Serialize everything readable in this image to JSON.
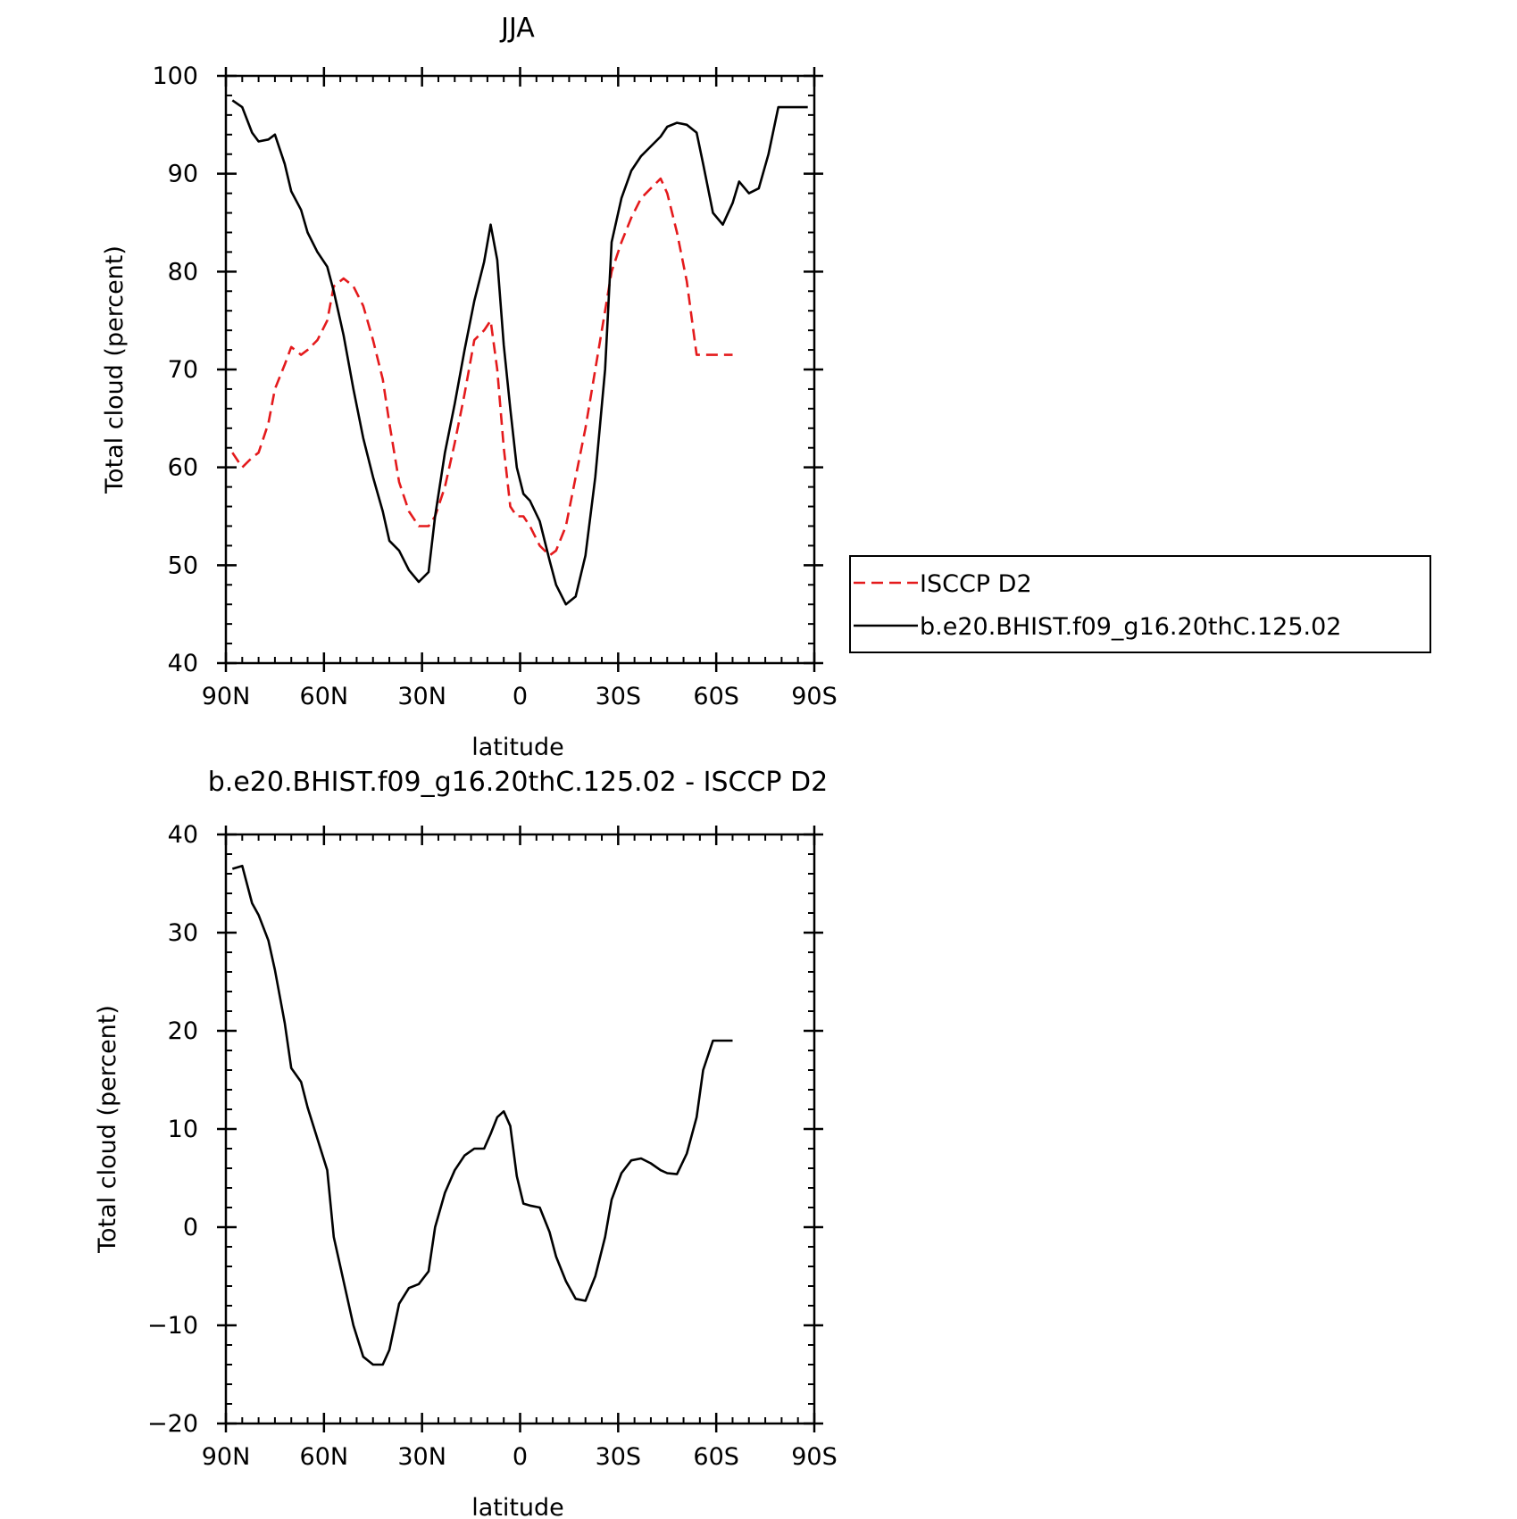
{
  "chart_data": [
    {
      "type": "line",
      "title": "JJA",
      "xlabel": "latitude",
      "ylabel": "Total cloud (percent)",
      "xlim": [
        90,
        -90
      ],
      "ylim": [
        40,
        100
      ],
      "xticks": [
        90,
        60,
        30,
        0,
        -30,
        -60,
        -90
      ],
      "xtick_labels": [
        "90N",
        "60N",
        "30N",
        "0",
        "30S",
        "60S",
        "90S"
      ],
      "yticks": [
        40,
        50,
        60,
        70,
        80,
        90,
        100
      ],
      "ytick_labels": [
        "40",
        "50",
        "60",
        "70",
        "80",
        "90",
        "100"
      ],
      "legend_position": "right",
      "series": [
        {
          "name": "ISCCP D2",
          "color": "#e41a1c",
          "dash": true,
          "x": [
            88,
            85,
            82,
            80,
            77,
            75,
            72,
            70,
            67,
            65,
            62,
            59,
            57,
            54,
            51,
            48,
            45,
            42,
            40,
            37,
            34,
            31,
            28,
            26,
            23,
            20,
            17,
            14,
            11,
            9,
            7,
            5,
            3,
            1,
            -1,
            -3,
            -6,
            -9,
            -11,
            -14,
            -17,
            -20,
            -23,
            -26,
            -28,
            -31,
            -34,
            -37,
            -40,
            -43,
            -45,
            -48,
            -51,
            -54,
            -56,
            -59,
            -62,
            -65
          ],
          "y": [
            61.5,
            60.0,
            61.0,
            61.5,
            64.5,
            68.0,
            70.5,
            72.3,
            71.5,
            72.0,
            73.0,
            75.0,
            78.5,
            79.3,
            78.5,
            76.5,
            73.0,
            69.0,
            64.5,
            58.5,
            55.5,
            54.0,
            54.0,
            55.0,
            58.0,
            62.5,
            67.5,
            73.0,
            74.0,
            75.0,
            70.0,
            62.0,
            56.0,
            55.0,
            55.0,
            54.0,
            52.0,
            51.0,
            51.5,
            54.0,
            59.0,
            64.0,
            70.0,
            76.0,
            80.0,
            83.0,
            85.5,
            87.5,
            88.5,
            89.5,
            88.0,
            84.0,
            79.0,
            71.5,
            71.5,
            71.5,
            71.5,
            71.5
          ]
        },
        {
          "name": "b.e20.BHIST.f09_g16.20thC.125.02",
          "color": "#000000",
          "dash": false,
          "x": [
            88,
            85,
            82,
            80,
            77,
            75,
            72,
            70,
            67,
            65,
            62,
            59,
            57,
            54,
            51,
            48,
            45,
            42,
            40,
            37,
            34,
            31,
            28,
            26,
            23,
            20,
            17,
            14,
            11,
            9,
            7,
            5,
            3,
            1,
            -1,
            -3,
            -6,
            -9,
            -11,
            -14,
            -17,
            -20,
            -23,
            -26,
            -28,
            -31,
            -34,
            -37,
            -40,
            -43,
            -45,
            -48,
            -51,
            -54,
            -56,
            -59,
            -62,
            -65,
            -67,
            -70,
            -73,
            -76,
            -79,
            -82,
            -85,
            -88
          ],
          "y": [
            97.5,
            96.8,
            94.2,
            93.3,
            93.5,
            94.0,
            91.0,
            88.2,
            86.3,
            84.0,
            82.0,
            80.5,
            78.0,
            73.5,
            68.0,
            63.0,
            59.0,
            55.5,
            52.5,
            51.5,
            49.5,
            48.3,
            49.3,
            55.0,
            61.5,
            66.5,
            72.0,
            77.0,
            81.0,
            84.8,
            81.2,
            72.5,
            66.0,
            60.0,
            57.3,
            56.6,
            54.5,
            50.5,
            48.0,
            46.0,
            46.8,
            51.0,
            59.0,
            70.0,
            83.0,
            87.5,
            90.3,
            91.8,
            92.8,
            93.8,
            94.8,
            95.2,
            95.0,
            94.2,
            91.0,
            86.0,
            84.8,
            87.0,
            89.2,
            88.0,
            88.5,
            92.0,
            96.8,
            96.8,
            96.8,
            96.8
          ]
        }
      ]
    },
    {
      "type": "line",
      "title": "b.e20.BHIST.f09_g16.20thC.125.02 - ISCCP D2",
      "xlabel": "latitude",
      "ylabel": "Total cloud (percent)",
      "xlim": [
        90,
        -90
      ],
      "ylim": [
        -20,
        40
      ],
      "xticks": [
        90,
        60,
        30,
        0,
        -30,
        -60,
        -90
      ],
      "xtick_labels": [
        "90N",
        "60N",
        "30N",
        "0",
        "30S",
        "60S",
        "90S"
      ],
      "yticks": [
        -20,
        -10,
        0,
        10,
        20,
        30,
        40
      ],
      "ytick_labels": [
        "−20",
        "−10",
        "0",
        "10",
        "20",
        "30",
        "40"
      ],
      "series": [
        {
          "color": "#000000",
          "dash": false,
          "x": [
            88,
            85,
            82,
            80,
            77,
            75,
            72,
            70,
            67,
            65,
            62,
            59,
            57,
            54,
            51,
            48,
            45,
            42,
            40,
            37,
            34,
            31,
            28,
            26,
            23,
            20,
            17,
            14,
            11,
            9,
            7,
            5,
            3,
            1,
            -1,
            -3,
            -6,
            -9,
            -11,
            -14,
            -17,
            -20,
            -23,
            -26,
            -28,
            -31,
            -34,
            -37,
            -40,
            -43,
            -45,
            -48,
            -51,
            -54,
            -56,
            -59,
            -62,
            -65
          ],
          "y": [
            36.5,
            36.8,
            33.0,
            31.8,
            29.2,
            26.2,
            20.8,
            16.2,
            14.8,
            12.2,
            9.0,
            5.8,
            -1.0,
            -5.5,
            -10.0,
            -13.2,
            -14.0,
            -14.0,
            -12.5,
            -7.8,
            -6.2,
            -5.8,
            -4.5,
            0.0,
            3.5,
            5.8,
            7.3,
            8.0,
            8.0,
            9.5,
            11.2,
            11.8,
            10.3,
            5.2,
            2.4,
            2.2,
            2.0,
            -0.5,
            -3.0,
            -5.5,
            -7.3,
            -7.5,
            -5.0,
            -1.0,
            2.8,
            5.5,
            6.8,
            7.0,
            6.5,
            5.8,
            5.5,
            5.4,
            7.5,
            11.2,
            16.0,
            19.0,
            19.0,
            19.0
          ]
        }
      ]
    }
  ]
}
